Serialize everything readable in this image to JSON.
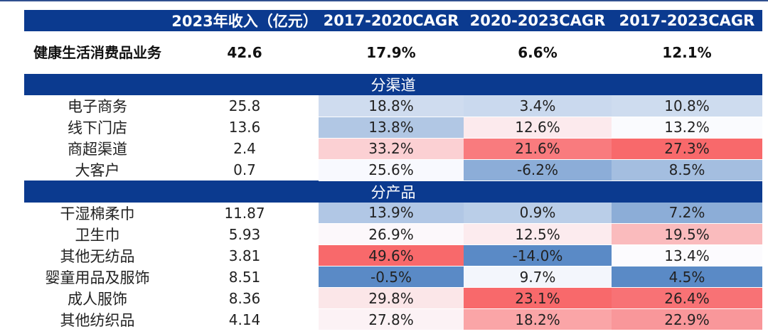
{
  "chart_data": {
    "type": "table",
    "columns": [
      "",
      "2023年收入（亿元）",
      "2017-2020CAGR",
      "2020-2023CAGR",
      "2017-2023CAGR"
    ],
    "total_row": {
      "name": "健康生活消费品业务",
      "revenue": "42.6",
      "cagr_17_20": "17.9%",
      "cagr_20_23": "6.6%",
      "cagr_17_23": "12.1%"
    },
    "sections": [
      {
        "title": "分渠道",
        "rows": [
          {
            "name": "电子商务",
            "revenue": "25.8",
            "cagr_17_20": "18.8%",
            "cagr_20_23": "3.4%",
            "cagr_17_23": "10.8%"
          },
          {
            "name": "线下门店",
            "revenue": "13.6",
            "cagr_17_20": "13.8%",
            "cagr_20_23": "12.6%",
            "cagr_17_23": "13.2%"
          },
          {
            "name": "商超渠道",
            "revenue": "2.4",
            "cagr_17_20": "33.2%",
            "cagr_20_23": "21.6%",
            "cagr_17_23": "27.3%"
          },
          {
            "name": "大客户",
            "revenue": "0.7",
            "cagr_17_20": "25.6%",
            "cagr_20_23": "-6.2%",
            "cagr_17_23": "8.5%"
          }
        ]
      },
      {
        "title": "分产品",
        "rows": [
          {
            "name": "干湿棉柔巾",
            "revenue": "11.87",
            "cagr_17_20": "13.9%",
            "cagr_20_23": "0.9%",
            "cagr_17_23": "7.2%"
          },
          {
            "name": "卫生巾",
            "revenue": "5.93",
            "cagr_17_20": "26.9%",
            "cagr_20_23": "12.5%",
            "cagr_17_23": "19.5%"
          },
          {
            "name": "其他无纺品",
            "revenue": "3.81",
            "cagr_17_20": "49.6%",
            "cagr_20_23": "-14.0%",
            "cagr_17_23": "13.4%"
          },
          {
            "name": "婴童用品及服饰",
            "revenue": "8.51",
            "cagr_17_20": "-0.5%",
            "cagr_20_23": "9.7%",
            "cagr_17_23": "4.5%"
          },
          {
            "name": "成人服饰",
            "revenue": "8.36",
            "cagr_17_20": "29.8%",
            "cagr_20_23": "23.1%",
            "cagr_17_23": "26.4%"
          },
          {
            "name": "其他纺织品",
            "revenue": "4.14",
            "cagr_17_20": "27.8%",
            "cagr_20_23": "18.2%",
            "cagr_17_23": "22.9%"
          }
        ]
      }
    ],
    "heatmap_colors": {
      "high": "#f8696b",
      "mid": "#fcfcff",
      "low": "#5a8ac6"
    }
  }
}
